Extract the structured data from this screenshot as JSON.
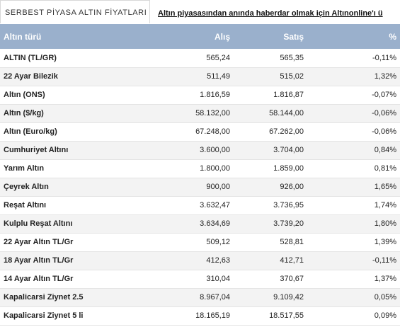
{
  "tab": {
    "title": "SERBEST PİYASA ALTIN FİYATLARI"
  },
  "ticker": {
    "text": "Altın piyasasından anında haberdar olmak için Altınonline'ı ü"
  },
  "table": {
    "headers": {
      "name": "Altın türü",
      "buy": "Alış",
      "sell": "Satış",
      "change": "%"
    },
    "rows": [
      {
        "name": "ALTIN (TL/GR)",
        "buy": "565,24",
        "sell": "565,35",
        "change": "-0,11%"
      },
      {
        "name": "22 Ayar Bilezik",
        "buy": "511,49",
        "sell": "515,02",
        "change": "1,32%"
      },
      {
        "name": "Altın (ONS)",
        "buy": "1.816,59",
        "sell": "1.816,87",
        "change": "-0,07%"
      },
      {
        "name": "Altın ($/kg)",
        "buy": "58.132,00",
        "sell": "58.144,00",
        "change": "-0,06%"
      },
      {
        "name": "Altın (Euro/kg)",
        "buy": "67.248,00",
        "sell": "67.262,00",
        "change": "-0,06%"
      },
      {
        "name": "Cumhuriyet Altını",
        "buy": "3.600,00",
        "sell": "3.704,00",
        "change": "0,84%"
      },
      {
        "name": "Yarım Altın",
        "buy": "1.800,00",
        "sell": "1.859,00",
        "change": "0,81%"
      },
      {
        "name": "Çeyrek Altın",
        "buy": "900,00",
        "sell": "926,00",
        "change": "1,65%"
      },
      {
        "name": "Reşat Altını",
        "buy": "3.632,47",
        "sell": "3.736,95",
        "change": "1,74%"
      },
      {
        "name": "Kulplu Reşat Altını",
        "buy": "3.634,69",
        "sell": "3.739,20",
        "change": "1,80%"
      },
      {
        "name": "22 Ayar Altın TL/Gr",
        "buy": "509,12",
        "sell": "528,81",
        "change": "1,39%"
      },
      {
        "name": "18 Ayar Altın TL/Gr",
        "buy": "412,63",
        "sell": "412,71",
        "change": "-0,11%"
      },
      {
        "name": "14 Ayar Altın TL/Gr",
        "buy": "310,04",
        "sell": "370,67",
        "change": "1,37%"
      },
      {
        "name": "Kapalicarsi Ziynet 2.5",
        "buy": "8.967,04",
        "sell": "9.109,42",
        "change": "0,05%"
      },
      {
        "name": "Kapalicarsi Ziynet 5 li",
        "buy": "18.165,19",
        "sell": "18.517,55",
        "change": "0,09%"
      }
    ]
  }
}
